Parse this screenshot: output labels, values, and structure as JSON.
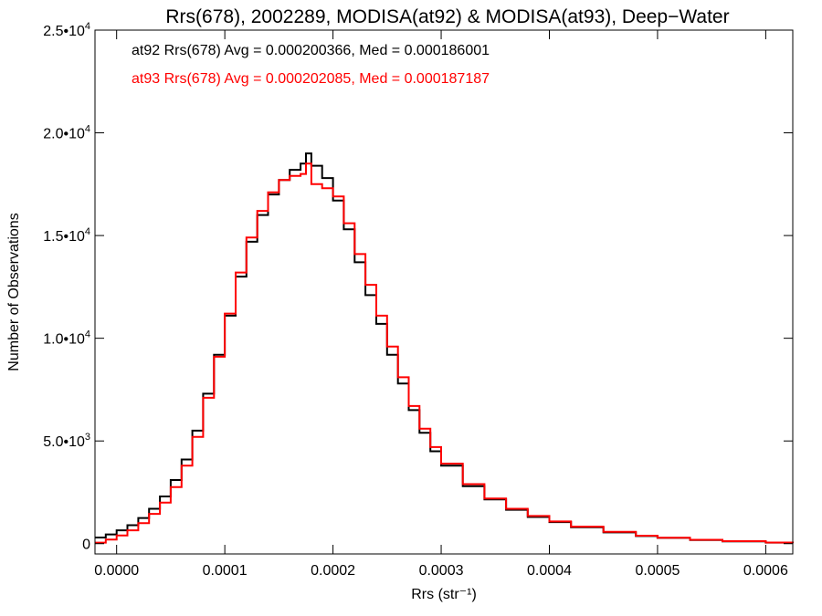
{
  "chart_data": {
    "type": "line",
    "title": "Rrs(678), 2002289, MODISA(at92) & MODISA(at93), Deep−Water",
    "xlabel": "Rrs (str⁻¹)",
    "ylabel": "Number of Observations",
    "xlim": [
      -2e-05,
      0.000625
    ],
    "ylim": [
      -500,
      25000
    ],
    "x_ticks": [
      0.0,
      0.0001,
      0.0002,
      0.0003,
      0.0004,
      0.0005,
      0.0006
    ],
    "x_tick_labels": [
      "0.0000",
      "0.0001",
      "0.0002",
      "0.0003",
      "0.0004",
      "0.0005",
      "0.0006"
    ],
    "y_ticks": [
      0,
      5000,
      10000,
      15000,
      20000,
      25000
    ],
    "y_tick_labels": [
      {
        "mantissa": "0",
        "exp": ""
      },
      {
        "mantissa": "5.0•",
        "exp": "3"
      },
      {
        "mantissa": "1.0•",
        "exp": "4"
      },
      {
        "mantissa": "1.5•",
        "exp": "4"
      },
      {
        "mantissa": "2.0•",
        "exp": "4"
      },
      {
        "mantissa": "2.5•",
        "exp": "4"
      }
    ],
    "grid": false,
    "legend_position": "top-left",
    "legend": [
      "at92 Rrs(678) Avg = 0.000200366, Med = 0.000186001",
      "at93 Rrs(678) Avg = 0.000202085, Med = 0.000187187"
    ],
    "series": [
      {
        "name": "at92",
        "color": "#000000",
        "x": [
          -2e-05,
          -1e-05,
          0.0,
          1e-05,
          2e-05,
          3e-05,
          4e-05,
          5e-05,
          6e-05,
          7e-05,
          8e-05,
          9e-05,
          0.0001,
          0.00011,
          0.00012,
          0.00013,
          0.00014,
          0.00015,
          0.00016,
          0.00017,
          0.000175,
          0.00018,
          0.00019,
          0.0002,
          0.00021,
          0.00022,
          0.00023,
          0.00024,
          0.00025,
          0.00026,
          0.00027,
          0.00028,
          0.00029,
          0.0003,
          0.00032,
          0.00034,
          0.00036,
          0.00038,
          0.0004,
          0.00042,
          0.00045,
          0.00048,
          0.0005,
          0.00053,
          0.00056,
          0.0006,
          0.000625
        ],
        "y": [
          300,
          450,
          650,
          900,
          1250,
          1700,
          2300,
          3100,
          4100,
          5500,
          7300,
          9200,
          11100,
          13000,
          14700,
          16000,
          17000,
          17700,
          18200,
          18500,
          19000,
          18400,
          17800,
          16700,
          15300,
          13700,
          12100,
          10700,
          9200,
          7800,
          6500,
          5400,
          4500,
          3800,
          2800,
          2150,
          1650,
          1300,
          1050,
          800,
          550,
          370,
          280,
          180,
          110,
          50,
          30
        ]
      },
      {
        "name": "at93",
        "color": "#ff0000",
        "x": [
          -2e-05,
          -1e-05,
          0.0,
          1e-05,
          2e-05,
          3e-05,
          4e-05,
          5e-05,
          6e-05,
          7e-05,
          8e-05,
          9e-05,
          0.0001,
          0.00011,
          0.00012,
          0.00013,
          0.00014,
          0.00015,
          0.00016,
          0.00017,
          0.000175,
          0.00018,
          0.00019,
          0.0002,
          0.00021,
          0.00022,
          0.00023,
          0.00024,
          0.00025,
          0.00026,
          0.00027,
          0.00028,
          0.00029,
          0.0003,
          0.00032,
          0.00034,
          0.00036,
          0.00038,
          0.0004,
          0.00042,
          0.00045,
          0.00048,
          0.0005,
          0.00053,
          0.00056,
          0.0006,
          0.000625
        ],
        "y": [
          50,
          200,
          400,
          650,
          1000,
          1450,
          2000,
          2750,
          3800,
          5200,
          7100,
          9100,
          11200,
          13200,
          14900,
          16200,
          17100,
          17700,
          17900,
          18000,
          18500,
          17500,
          17300,
          16900,
          15600,
          14100,
          12600,
          11100,
          9600,
          8100,
          6700,
          5600,
          4700,
          3900,
          2900,
          2200,
          1700,
          1350,
          1080,
          830,
          580,
          390,
          290,
          190,
          120,
          55,
          30
        ]
      }
    ]
  }
}
